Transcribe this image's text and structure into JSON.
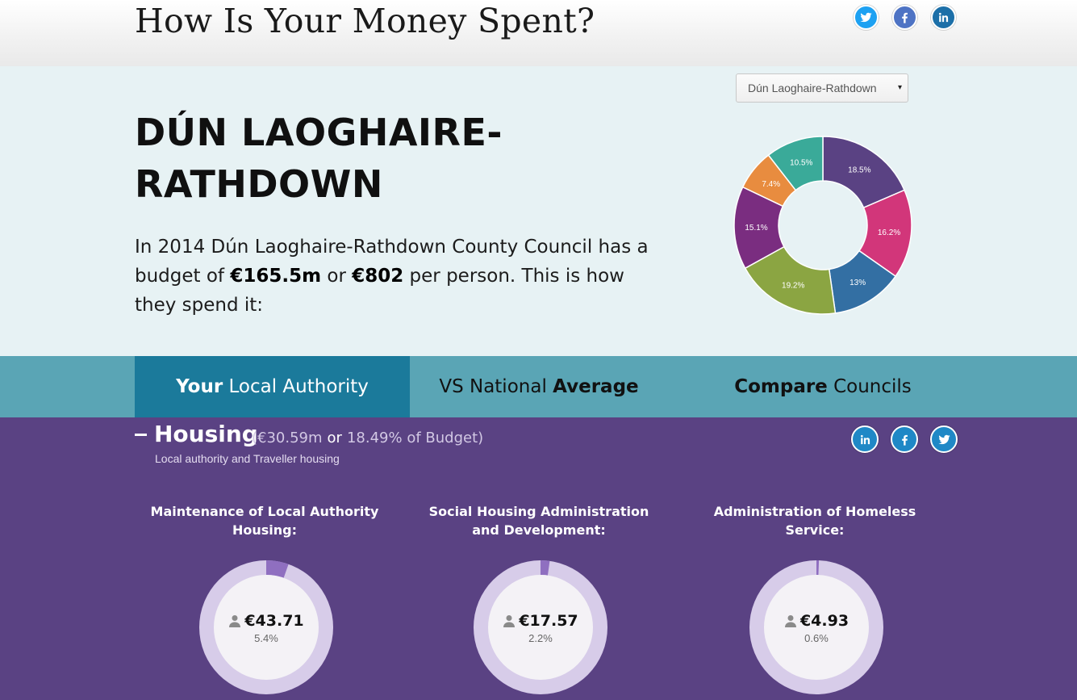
{
  "header": {
    "title": "How Is Your Money Spent?"
  },
  "hero": {
    "council_select": {
      "value": "Dún Laoghaire-Rathdown",
      "caret": "▾"
    },
    "council_name": "DÚN LAOGHAIRE-RATHDOWN",
    "summary": {
      "prefix": "In 2014 Dún Laoghaire-Rathdown County Council has a budget of ",
      "budget": "€165.5m",
      "mid": " or ",
      "per_person": "€802",
      "suffix": " per person. This is how they spend it:"
    }
  },
  "chart_data": {
    "type": "pie",
    "labels": [
      "18.5%",
      "16.2%",
      "13%",
      "19.2%",
      "15.1%",
      "7.4%",
      "10.5%"
    ],
    "values": [
      18.5,
      16.2,
      13,
      19.2,
      15.1,
      7.4,
      10.5
    ],
    "colors": [
      "#5a4283",
      "#d2367a",
      "#336fa3",
      "#8ba542",
      "#7a2d80",
      "#e88c3f",
      "#3aaa99"
    ]
  },
  "tabs": [
    {
      "bold": "Your",
      "rest": " Local Authority"
    },
    {
      "pre": "VS National ",
      "bold": "Average"
    },
    {
      "bold": "Compare",
      "rest": " Councils"
    }
  ],
  "category": {
    "collapse_icon": "minus-icon",
    "title": "Housing",
    "amount": "(€30.59m",
    "or": "or",
    "share": "18.49% of Budget)",
    "description": "Local authority and Traveller housing",
    "services": [
      {
        "label": "Maintenance of Local Authority Housing:",
        "amount": "€43.71",
        "percent": "5.4%",
        "fraction": 0.054
      },
      {
        "label": "Social Housing Administration and Development:",
        "amount": "€17.57",
        "percent": "2.2%",
        "fraction": 0.022
      },
      {
        "label": "Administration of Homeless Service:",
        "amount": "€4.93",
        "percent": "0.6%",
        "fraction": 0.006
      }
    ]
  },
  "social_icons": [
    "twitter-icon",
    "facebook-icon",
    "linkedin-icon"
  ],
  "colors": {
    "tab_active": "#1b7a9b",
    "tabs_bg": "#5aa5b5",
    "section_bg": "#5a4283",
    "hero_bg": "#e7f2f4"
  }
}
